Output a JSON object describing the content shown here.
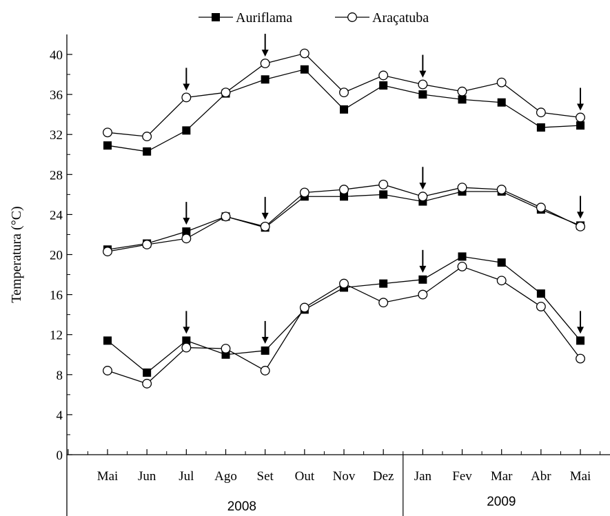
{
  "chart_data": {
    "type": "line",
    "title": "",
    "xlabel": "",
    "ylabel": "Temperatura (°C)",
    "ylim": [
      0,
      40
    ],
    "yticks": [
      0,
      4,
      8,
      12,
      16,
      20,
      24,
      28,
      32,
      36,
      40
    ],
    "categories": [
      "Mai",
      "Jun",
      "Jul",
      "Ago",
      "Set",
      "Out",
      "Nov",
      "Dez",
      "Jan",
      "Fev",
      "Mar",
      "Abr",
      "Mai"
    ],
    "year_groups": [
      {
        "label": "2008",
        "from": 0,
        "to": 7
      },
      {
        "label": "2009",
        "from": 8,
        "to": 12
      }
    ],
    "legend_position": "top-center",
    "grid": false,
    "series": [
      {
        "name": "Auriflama",
        "marker": "filled-square",
        "group": "max",
        "values": [
          30.9,
          30.3,
          32.4,
          36.1,
          37.5,
          38.5,
          34.5,
          36.9,
          36.0,
          35.5,
          35.2,
          32.7,
          32.9
        ]
      },
      {
        "name": "Araçatuba",
        "marker": "open-circle",
        "group": "max",
        "values": [
          32.2,
          31.8,
          35.7,
          36.2,
          39.1,
          40.1,
          36.2,
          37.9,
          37.0,
          36.3,
          37.2,
          34.2,
          33.7
        ]
      },
      {
        "name": "Auriflama",
        "marker": "filled-square",
        "group": "mean",
        "values": [
          20.5,
          21.1,
          22.3,
          23.8,
          22.7,
          25.8,
          25.8,
          26.0,
          25.3,
          26.3,
          26.3,
          24.5,
          22.9
        ]
      },
      {
        "name": "Araçatuba",
        "marker": "open-circle",
        "group": "mean",
        "values": [
          20.3,
          21.0,
          21.6,
          23.8,
          22.8,
          26.2,
          26.5,
          27.0,
          25.8,
          26.7,
          26.5,
          24.7,
          22.8
        ]
      },
      {
        "name": "Auriflama",
        "marker": "filled-square",
        "group": "min",
        "values": [
          11.4,
          8.2,
          11.4,
          10.0,
          10.4,
          14.5,
          16.7,
          17.1,
          17.5,
          19.8,
          19.2,
          16.1,
          11.4
        ]
      },
      {
        "name": "Araçatuba",
        "marker": "open-circle",
        "group": "min",
        "values": [
          8.4,
          7.1,
          10.7,
          10.6,
          8.4,
          14.7,
          17.1,
          15.2,
          16.0,
          18.8,
          17.4,
          14.8,
          9.6
        ]
      }
    ],
    "arrow_annotations": [
      {
        "category_index": 2,
        "group": "max",
        "value": 35.7
      },
      {
        "category_index": 4,
        "group": "max",
        "value": 39.1
      },
      {
        "category_index": 8,
        "group": "max",
        "value": 37.0
      },
      {
        "category_index": 12,
        "group": "max",
        "value": 33.7
      },
      {
        "category_index": 2,
        "group": "mean",
        "value": 22.3
      },
      {
        "category_index": 4,
        "group": "mean",
        "value": 22.8
      },
      {
        "category_index": 8,
        "group": "mean",
        "value": 25.8
      },
      {
        "category_index": 12,
        "group": "mean",
        "value": 22.9
      },
      {
        "category_index": 2,
        "group": "min",
        "value": 11.4
      },
      {
        "category_index": 4,
        "group": "min",
        "value": 10.4
      },
      {
        "category_index": 8,
        "group": "min",
        "value": 17.5
      },
      {
        "category_index": 12,
        "group": "min",
        "value": 11.4
      }
    ],
    "colors": {
      "line": "#000000",
      "open_marker_fill": "#ffffff",
      "background": "#ffffff"
    }
  }
}
